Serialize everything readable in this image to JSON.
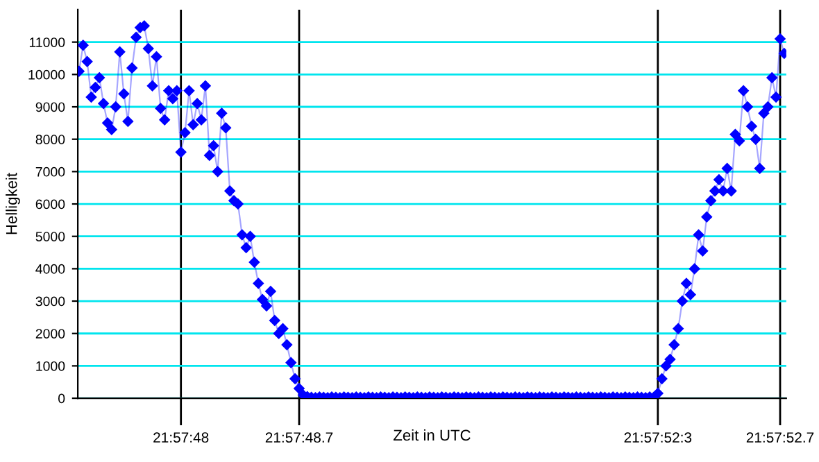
{
  "chart_data": {
    "type": "line",
    "xlabel": "Zeit in UTC",
    "ylabel": "Helligkeit",
    "categories": [
      null,
      null,
      null,
      null,
      null,
      null,
      null,
      null,
      null,
      null,
      null,
      null,
      null,
      null,
      null,
      null,
      null,
      null,
      null,
      null,
      null,
      null,
      null,
      null,
      null,
      "21:57:48",
      null,
      null,
      null,
      null,
      null,
      null,
      null,
      null,
      null,
      null,
      null,
      null,
      null,
      null,
      null,
      null,
      null,
      null,
      null,
      null,
      null,
      null,
      null,
      null,
      null,
      null,
      null,
      null,
      "21:57:48.7",
      null,
      null,
      null,
      null,
      null,
      null,
      null,
      null,
      null,
      null,
      null,
      null,
      null,
      null,
      null,
      null,
      null,
      null,
      null,
      null,
      null,
      null,
      null,
      null,
      null,
      null,
      null,
      null,
      null,
      null,
      null,
      null,
      null,
      null,
      null,
      null,
      null,
      null,
      null,
      null,
      null,
      null,
      null,
      null,
      null,
      null,
      null,
      null,
      null,
      null,
      null,
      null,
      null,
      null,
      null,
      null,
      null,
      null,
      null,
      null,
      null,
      null,
      null,
      null,
      null,
      null,
      null,
      null,
      null,
      null,
      null,
      null,
      null,
      null,
      null,
      null,
      null,
      null,
      null,
      null,
      null,
      null,
      null,
      null,
      null,
      null,
      null,
      "21:57:52:3",
      null,
      null,
      null,
      null,
      null,
      null,
      null,
      null,
      null,
      null,
      null,
      null,
      null,
      null,
      null,
      null,
      null,
      null,
      null,
      null,
      null,
      null,
      null,
      null,
      null,
      null,
      null,
      null,
      null,
      "21:57:52.7",
      null
    ],
    "series": [
      {
        "color": "#0000ff",
        "values": [
          10100,
          10900,
          10400,
          9300,
          9600,
          9900,
          9100,
          8500,
          8300,
          9000,
          10700,
          9400,
          8550,
          10200,
          11150,
          11450,
          11500,
          10800,
          9650,
          10550,
          8950,
          8600,
          9500,
          9250,
          9500,
          7600,
          8200,
          9500,
          8450,
          9100,
          8600,
          9650,
          7500,
          7800,
          7000,
          8800,
          8350,
          6400,
          6100,
          6000,
          5050,
          4650,
          5000,
          4200,
          3550,
          3050,
          2850,
          3300,
          2400,
          2000,
          2150,
          1650,
          1100,
          600,
          300,
          100,
          50,
          30,
          20,
          40,
          30,
          20,
          40,
          30,
          20,
          40,
          30,
          20,
          40,
          30,
          20,
          40,
          30,
          20,
          40,
          30,
          20,
          40,
          30,
          20,
          40,
          30,
          20,
          40,
          30,
          20,
          40,
          30,
          20,
          40,
          30,
          20,
          40,
          30,
          20,
          40,
          30,
          20,
          40,
          30,
          20,
          40,
          30,
          20,
          40,
          30,
          20,
          40,
          30,
          20,
          40,
          30,
          20,
          40,
          30,
          20,
          40,
          30,
          20,
          40,
          30,
          20,
          40,
          30,
          20,
          40,
          30,
          20,
          40,
          30,
          20,
          40,
          30,
          20,
          40,
          30,
          20,
          40,
          30,
          20,
          40,
          30,
          150,
          600,
          1000,
          1200,
          1650,
          2150,
          3000,
          3550,
          3200,
          4000,
          5050,
          4550,
          5600,
          6100,
          6400,
          6750,
          6400,
          7100,
          6400,
          8150,
          7950,
          9500,
          9000,
          8400,
          8000,
          7100,
          8800,
          9000,
          9900,
          9300,
          11100,
          10650
        ]
      }
    ],
    "ylim": [
      0,
      12000
    ],
    "yticks": [
      0,
      1000,
      2000,
      3000,
      4000,
      5000,
      6000,
      7000,
      8000,
      9000,
      10000,
      11000
    ],
    "grid": true,
    "marker": "diamond",
    "line_style": "solid"
  }
}
